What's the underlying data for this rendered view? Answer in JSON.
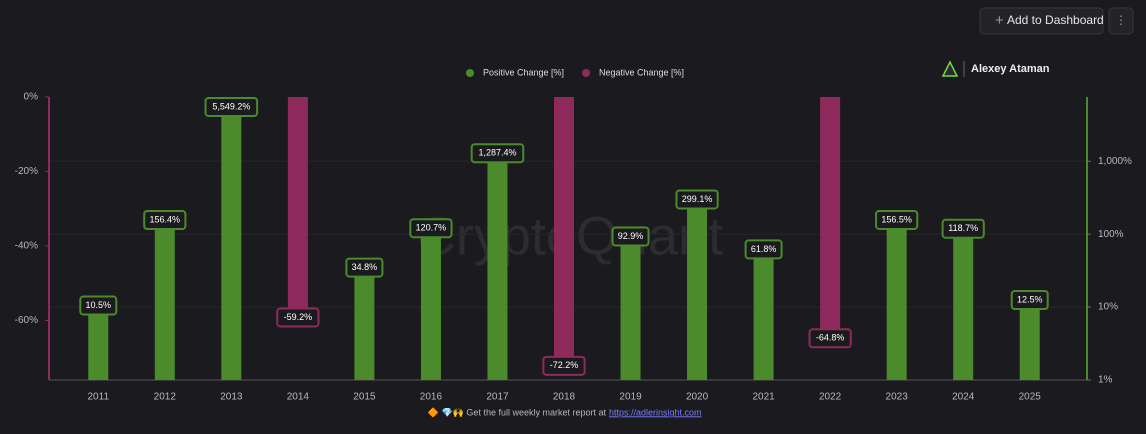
{
  "ui": {
    "button": "Add to Dashboard",
    "author": "Alexey Ataman",
    "watermark": "CryptoQuant",
    "footer_text": "🔶 💎🙌 Get the full weekly market report at",
    "footer_link": "https://adlerinsight.com"
  },
  "chart_data": {
    "type": "bar",
    "categories": [
      "2011",
      "2012",
      "2013",
      "2014",
      "2015",
      "2016",
      "2017",
      "2018",
      "2019",
      "2020",
      "2021",
      "2022",
      "2023",
      "2024",
      "2025"
    ],
    "series": [
      {
        "name": "Positive Change [%]",
        "color": "#4b8b2b",
        "axis": "y2",
        "values": [
          10.5,
          156.4,
          5549.2,
          null,
          34.8,
          120.7,
          1287.4,
          null,
          92.9,
          299.1,
          61.8,
          null,
          156.5,
          118.7,
          12.5
        ],
        "value_labels": [
          "10.5%",
          "156.4%",
          "5,549.2%",
          null,
          "34.8%",
          "120.7%",
          "1,287.4%",
          null,
          "92.9%",
          "299.1%",
          "61.8%",
          null,
          "156.5%",
          "118.7%",
          "12.5%"
        ]
      },
      {
        "name": "Negative Change [%]",
        "color": "#8f2b5c",
        "values": [
          null,
          null,
          null,
          -59.2,
          null,
          null,
          null,
          -72.2,
          null,
          null,
          null,
          -64.8,
          null,
          null,
          null
        ],
        "value_labels": [
          null,
          null,
          null,
          "-59.2%",
          null,
          null,
          null,
          "-72.2%",
          null,
          null,
          null,
          "-64.8%",
          null,
          null,
          null
        ]
      }
    ],
    "ylim": [
      -76,
      0
    ],
    "yticks": [
      {
        "value": 0,
        "label": "0%"
      },
      {
        "value": -20,
        "label": "-20%"
      },
      {
        "value": -40,
        "label": "-40%"
      },
      {
        "value": -60,
        "label": "-60%"
      }
    ],
    "y2lim": [
      1,
      7600
    ],
    "y2_log": true,
    "y2ticks": [
      {
        "value": 1,
        "label": "1%"
      },
      {
        "value": 10,
        "label": "10%"
      },
      {
        "value": 100,
        "label": "100%"
      },
      {
        "value": 1000,
        "label": "1,000%"
      }
    ],
    "grid": true
  }
}
